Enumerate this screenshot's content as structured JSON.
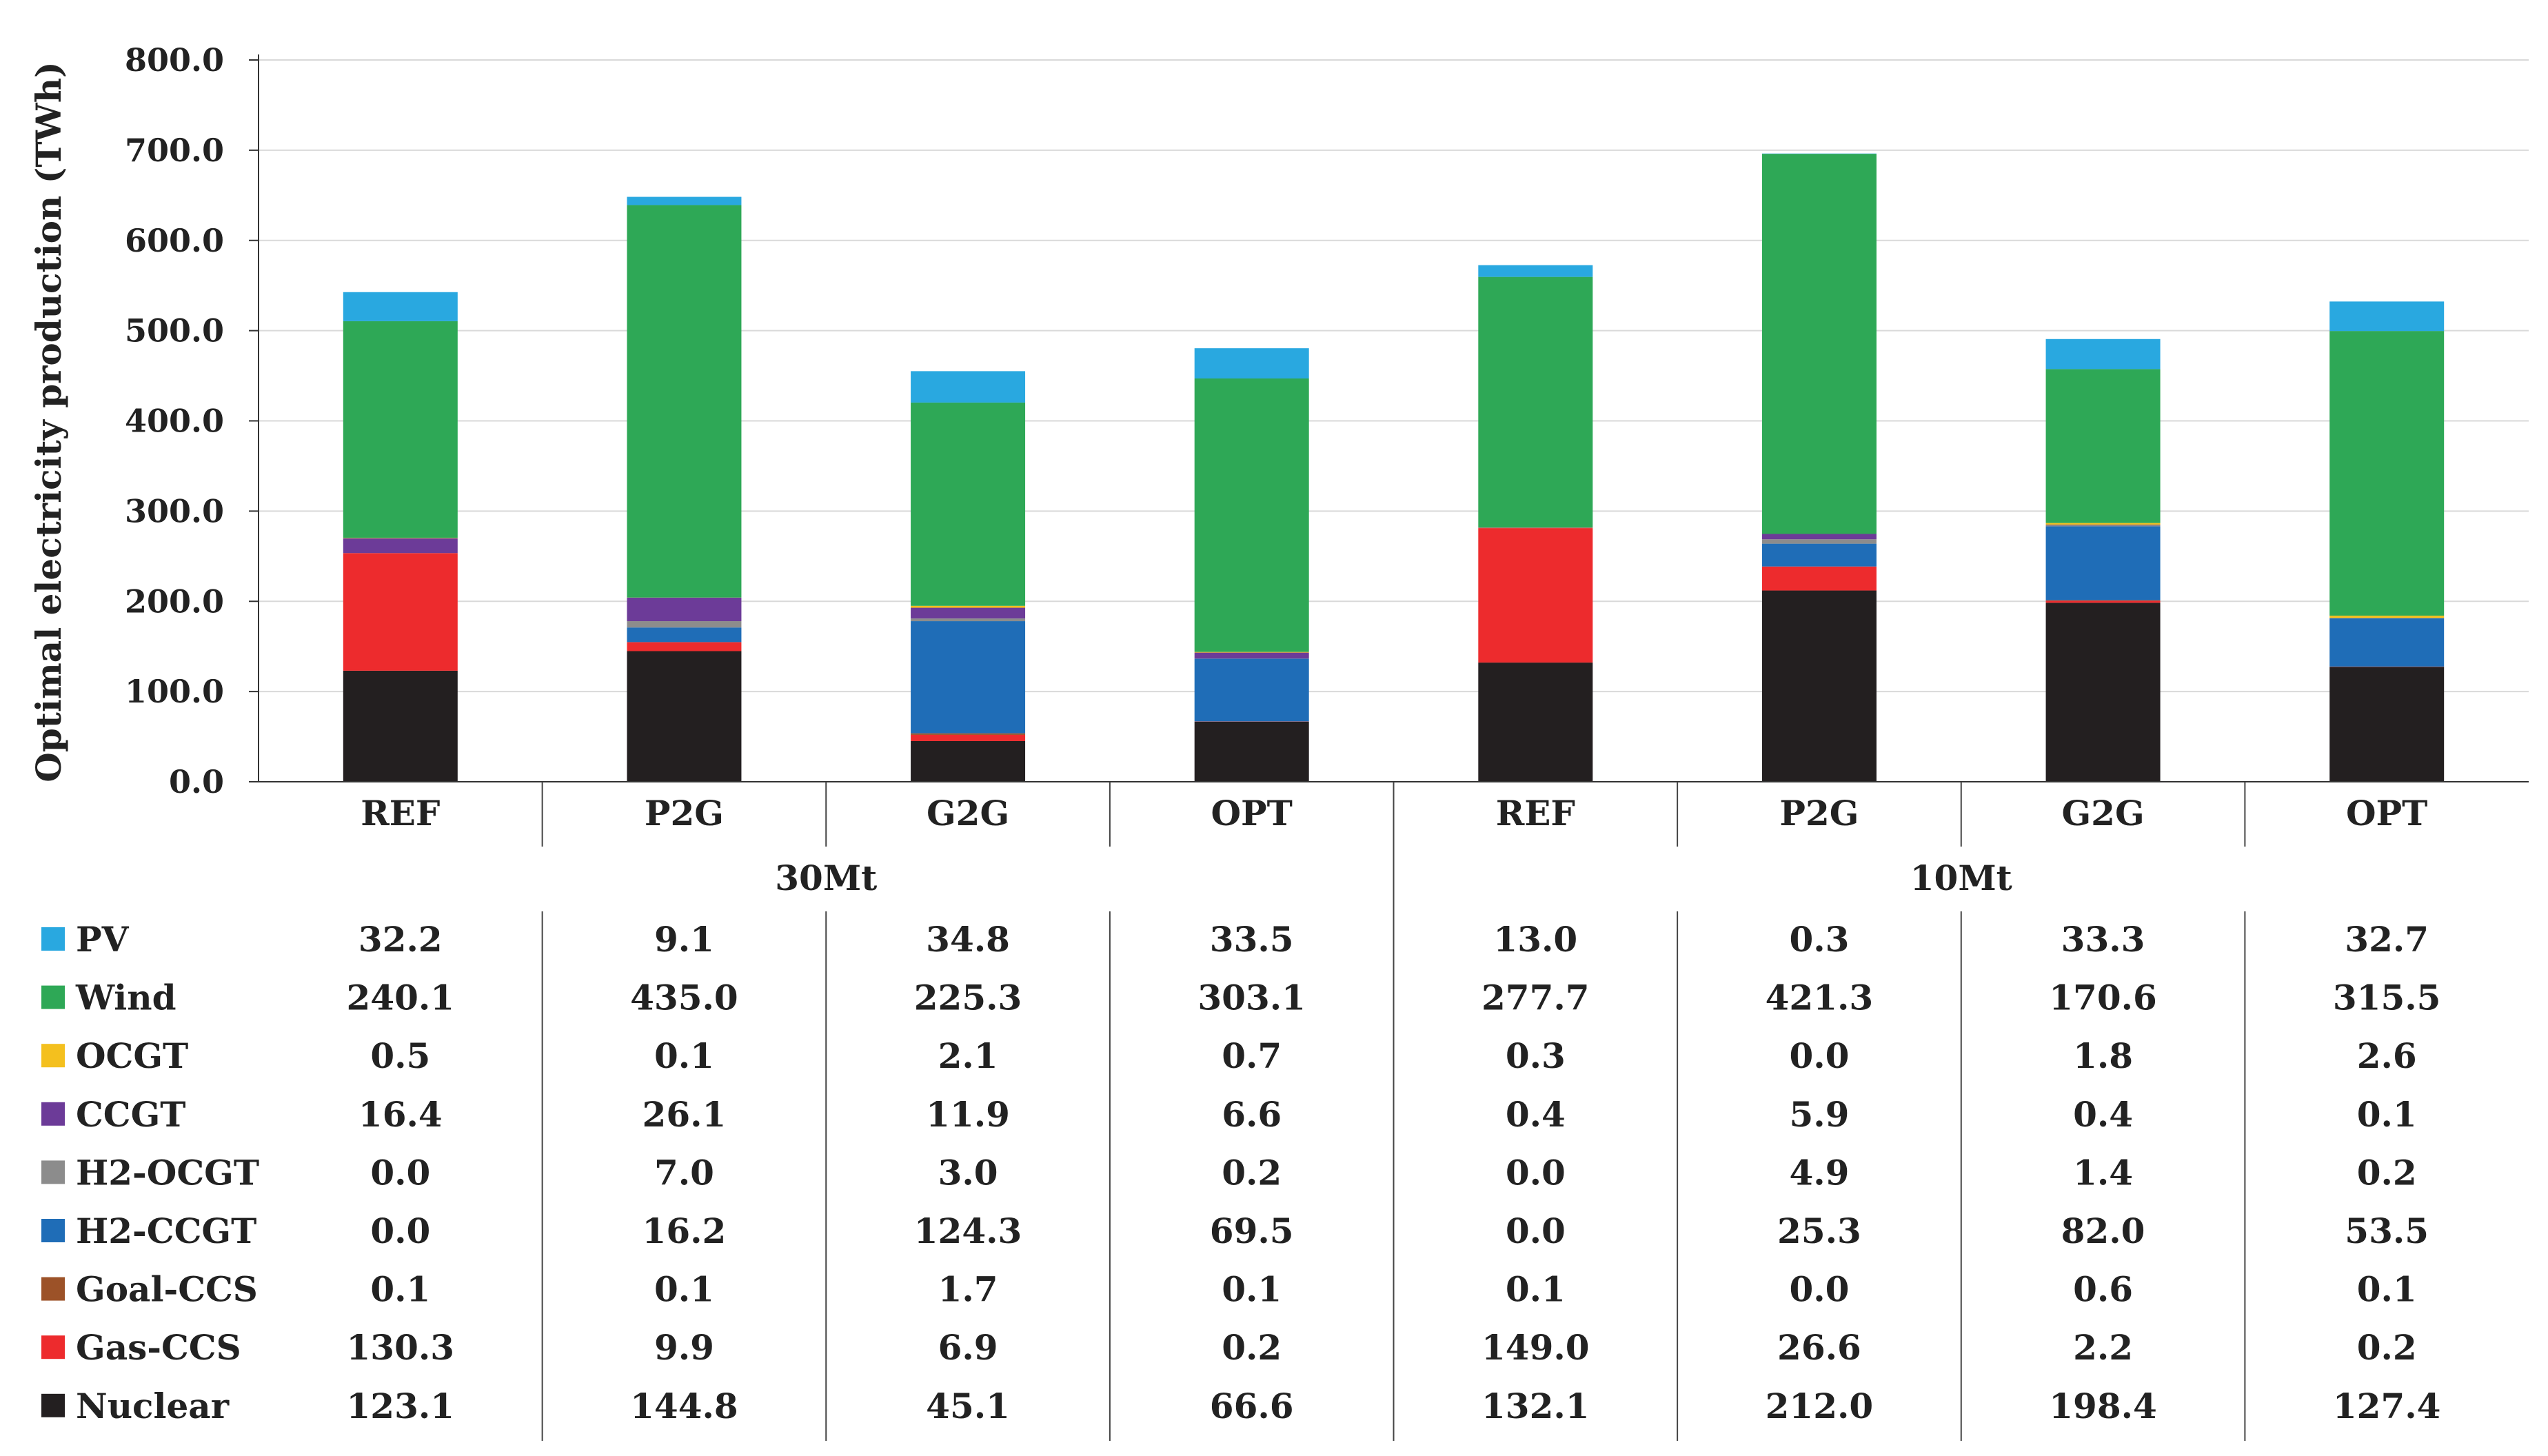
{
  "chart_data": {
    "type": "bar",
    "stacked": true,
    "ylabel": "Optimal electricity production (TWh)",
    "xlabel": "",
    "ylim": [
      0,
      800
    ],
    "yticks": [
      "0.0",
      "100.0",
      "200.0",
      "300.0",
      "400.0",
      "500.0",
      "600.0",
      "700.0",
      "800.0"
    ],
    "grid": true,
    "categories": [
      "REF",
      "P2G",
      "G2G",
      "OPT",
      "REF",
      "P2G",
      "G2G",
      "OPT"
    ],
    "groups": [
      {
        "label": "30Mt",
        "start": 0,
        "end": 3
      },
      {
        "label": "10Mt",
        "start": 4,
        "end": 7
      }
    ],
    "series": [
      {
        "name": "Nuclear",
        "color": "#231f20",
        "values": [
          123.1,
          144.8,
          45.1,
          66.6,
          132.1,
          212.0,
          198.4,
          127.4
        ],
        "labels": [
          "123.1",
          "144.8",
          "45.1",
          "66.6",
          "132.1",
          "212.0",
          "198.4",
          "127.4"
        ]
      },
      {
        "name": "Gas-CCS",
        "color": "#ed2b2d",
        "values": [
          130.3,
          9.9,
          6.9,
          0.2,
          149.0,
          26.6,
          2.2,
          0.2
        ],
        "labels": [
          "130.3",
          "9.9",
          "6.9",
          "0.2",
          "149.0",
          "26.6",
          "2.2",
          "0.2"
        ]
      },
      {
        "name": "Goal-CCS",
        "color": "#9c5228",
        "values": [
          0.1,
          0.1,
          1.7,
          0.1,
          0.1,
          0.0,
          0.6,
          0.1
        ],
        "labels": [
          "0.1",
          "0.1",
          "1.7",
          "0.1",
          "0.1",
          "0.0",
          "0.6",
          "0.1"
        ]
      },
      {
        "name": "H2-CCGT",
        "color": "#1f6db7",
        "values": [
          0.0,
          16.2,
          124.3,
          69.5,
          0.0,
          25.3,
          82.0,
          53.5
        ],
        "labels": [
          "0.0",
          "16.2",
          "124.3",
          "69.5",
          "0.0",
          "25.3",
          "82.0",
          "53.5"
        ]
      },
      {
        "name": "H2-OCGT",
        "color": "#8c8c8c",
        "values": [
          0.0,
          7.0,
          3.0,
          0.2,
          0.0,
          4.9,
          1.4,
          0.2
        ],
        "labels": [
          "0.0",
          "7.0",
          "3.0",
          "0.2",
          "0.0",
          "4.9",
          "1.4",
          "0.2"
        ]
      },
      {
        "name": "CCGT",
        "color": "#6c3b98",
        "values": [
          16.4,
          26.1,
          11.9,
          6.6,
          0.4,
          5.9,
          0.4,
          0.1
        ],
        "labels": [
          "16.4",
          "26.1",
          "11.9",
          "6.6",
          "0.4",
          "5.9",
          "0.4",
          "0.1"
        ]
      },
      {
        "name": "OCGT",
        "color": "#f4c01e",
        "values": [
          0.5,
          0.1,
          2.1,
          0.7,
          0.3,
          0.0,
          1.8,
          2.6
        ],
        "labels": [
          "0.5",
          "0.1",
          "2.1",
          "0.7",
          "0.3",
          "0.0",
          "1.8",
          "2.6"
        ]
      },
      {
        "name": "Wind",
        "color": "#2ea856",
        "values": [
          240.1,
          435.0,
          225.3,
          303.1,
          277.7,
          421.3,
          170.6,
          315.5
        ],
        "labels": [
          "240.1",
          "435.0",
          "225.3",
          "303.1",
          "277.7",
          "421.3",
          "170.6",
          "315.5"
        ]
      },
      {
        "name": "PV",
        "color": "#29a8e0",
        "values": [
          32.2,
          9.1,
          34.8,
          33.5,
          13.0,
          0.3,
          33.3,
          32.7
        ],
        "labels": [
          "32.2",
          "9.1",
          "34.8",
          "33.5",
          "13.0",
          "0.3",
          "33.3",
          "32.7"
        ]
      }
    ],
    "table_order": [
      "PV",
      "Wind",
      "OCGT",
      "CCGT",
      "H2-OCGT",
      "H2-CCGT",
      "Goal-CCS",
      "Gas-CCS",
      "Nuclear"
    ]
  }
}
